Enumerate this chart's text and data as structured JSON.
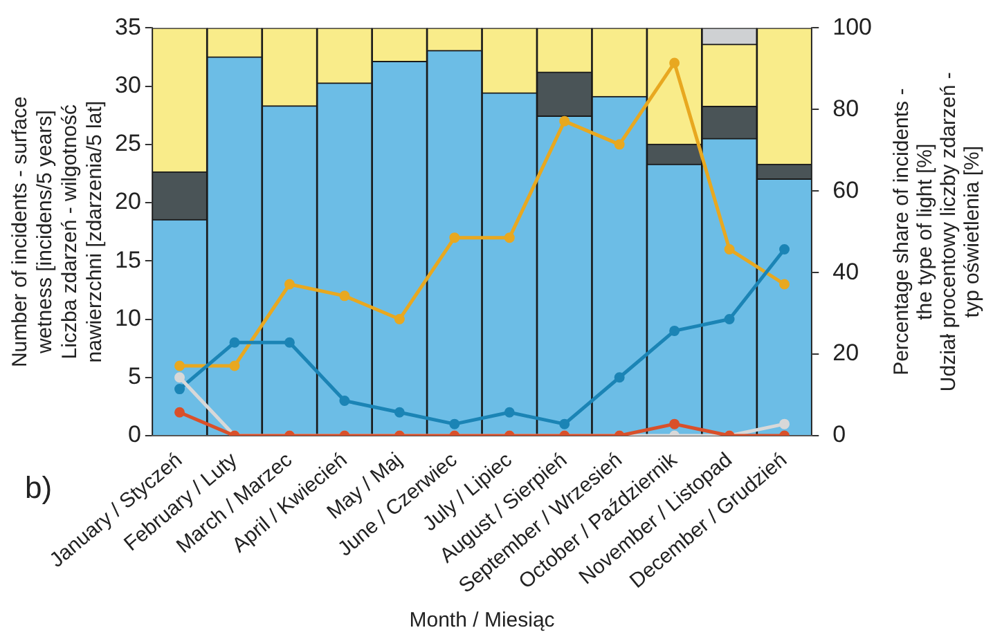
{
  "chart_data": {
    "type": "bar",
    "stacked": true,
    "categories": [
      "January / Styczeń",
      "February / Luty",
      "March / Marzec",
      "April / Kwiecień",
      "May / Maj",
      "June / Czerwiec",
      "July / Lipiec",
      "August / Sierpień",
      "September / Wrzesień",
      "October / Październik",
      "November / Listopad",
      "December / Grudzień"
    ],
    "xlabel": "Month / Miesiąc",
    "ylabel": "Number of incidents - surface\nwetness [incidens/5 years]\nLiczba zdarzeń - wilgotność\nnawierzchni [zdarzenia/5 lat]",
    "y2label": "Percentage share of incidents -\nthe type of light [%]\nUdział procentowy liczby zdarzeń -\ntyp oświetlenia [%]",
    "annotations": [
      "b)"
    ],
    "ylim": [
      0,
      35
    ],
    "yticks": [
      0,
      5,
      10,
      15,
      20,
      25,
      30,
      35
    ],
    "y2lim": [
      0,
      100
    ],
    "y2ticks": [
      0,
      20,
      40,
      60,
      80,
      100
    ],
    "grid": false,
    "legend": false,
    "marker": "circle",
    "line_style": "solid",
    "series": [
      {
        "axis": "y2",
        "color": "#6cbde6",
        "values": [
          53,
          92.9,
          80.9,
          86.5,
          91.8,
          94.5,
          84.1,
          78.4,
          83.2,
          66.6,
          72.9,
          63
        ]
      },
      {
        "axis": "y2",
        "color": "#4a5457",
        "values": [
          11.7,
          0,
          0,
          0,
          0,
          0,
          0,
          10.8,
          0,
          4.9,
          7.9,
          3.6
        ]
      },
      {
        "axis": "y2",
        "color": "#f9ec8a",
        "values": [
          35.3,
          7.1,
          19.1,
          13.5,
          8.2,
          5.5,
          15.9,
          10.8,
          16.8,
          28.5,
          15.2,
          33.4
        ]
      },
      {
        "axis": "y2",
        "color": "#cfd1d3",
        "values": [
          0,
          0,
          0,
          0,
          0,
          0,
          0,
          0,
          0,
          0,
          4,
          0
        ]
      },
      {
        "type": "line",
        "axis": "y",
        "color": "#d9502a",
        "values": [
          2,
          0,
          0,
          0,
          0,
          0,
          0,
          0,
          0,
          1,
          0,
          0
        ]
      },
      {
        "type": "line",
        "axis": "y",
        "color": "#d8d8d8",
        "values": [
          5,
          0,
          0,
          0,
          0,
          0,
          0,
          0,
          0,
          0,
          0,
          1
        ]
      },
      {
        "type": "line",
        "axis": "y",
        "color": "#1b84b5",
        "values": [
          4,
          8,
          8,
          3,
          2,
          1,
          2,
          1,
          5,
          9,
          10,
          16
        ]
      },
      {
        "type": "line",
        "axis": "y",
        "color": "#e8a820",
        "values": [
          6,
          6,
          13,
          12,
          10,
          17,
          17,
          27,
          25,
          32,
          16,
          13
        ]
      }
    ]
  }
}
